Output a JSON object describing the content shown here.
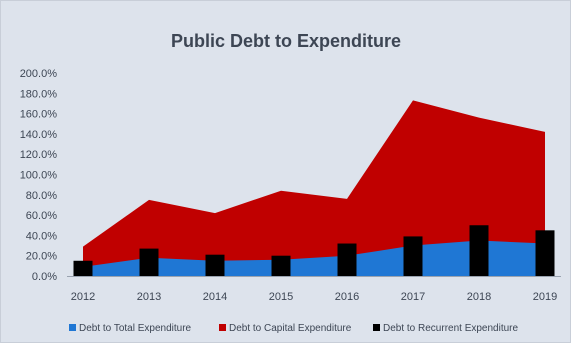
{
  "chart_data": {
    "type": "area",
    "title": "Public Debt to Expenditure",
    "x": [
      "2012",
      "2013",
      "2014",
      "2015",
      "2016",
      "2017",
      "2018",
      "2019"
    ],
    "ylim": [
      0,
      200
    ],
    "yticks": [
      0,
      20,
      40,
      60,
      80,
      100,
      120,
      140,
      160,
      180,
      200
    ],
    "ytick_labels": [
      "0.0%",
      "20.0%",
      "40.0%",
      "60.0%",
      "80.0%",
      "100.0%",
      "120.0%",
      "140.0%",
      "160.0%",
      "180.0%",
      "200.0%"
    ],
    "grid": false,
    "legend_position": "bottom",
    "series": [
      {
        "name": "Debt to Total Expenditure",
        "type": "area",
        "color": "#1f77d4",
        "values": [
          9,
          18,
          15,
          16,
          20,
          30,
          35,
          32
        ]
      },
      {
        "name": "Debt to Capital Expenditure",
        "type": "area",
        "color": "#c00000",
        "values": [
          29,
          75,
          62,
          84,
          76,
          173,
          156,
          142
        ]
      },
      {
        "name": "Debt to Recurrent Expenditure",
        "type": "bar",
        "color": "#000000",
        "values": [
          15,
          27,
          21,
          20,
          32,
          39,
          50,
          45
        ]
      }
    ]
  }
}
